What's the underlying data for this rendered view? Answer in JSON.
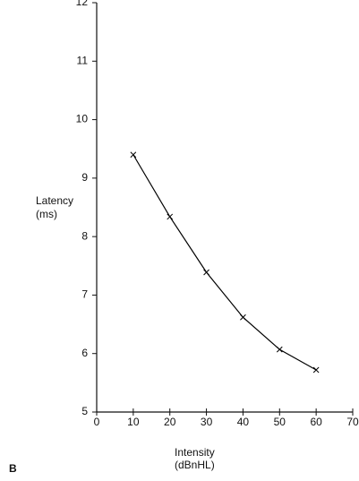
{
  "chart_data": {
    "type": "line",
    "ylabel": [
      "Latency",
      "(ms)"
    ],
    "xlabel": [
      "Intensity",
      "(dBnHL)"
    ],
    "panel_label": "B",
    "x": [
      10,
      20,
      30,
      40,
      50,
      60
    ],
    "series": [
      {
        "color": "#000000",
        "marker": "x",
        "values": [
          9.4,
          8.34,
          7.39,
          6.62,
          6.07,
          5.72
        ]
      }
    ],
    "xlim": [
      0,
      70
    ],
    "xticks": [
      0,
      10,
      20,
      30,
      40,
      50,
      60,
      70
    ],
    "ylim": [
      5,
      12
    ],
    "yticks": [
      5,
      6,
      7,
      8,
      9,
      10,
      11,
      12
    ],
    "grid": false
  }
}
